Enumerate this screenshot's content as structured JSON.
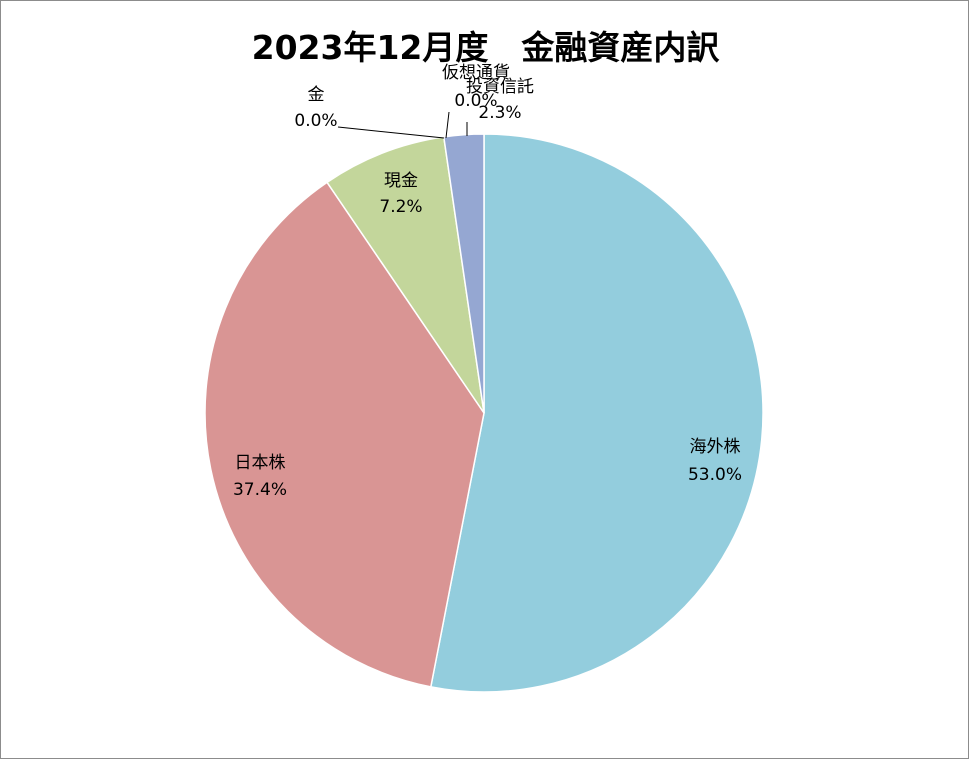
{
  "chart_data": {
    "type": "pie",
    "title": "2023年12月度　金融資産内訳",
    "slices": [
      {
        "label": "海外株",
        "value": 53.0,
        "value_label": "53.0%",
        "color": "#93cddd"
      },
      {
        "label": "日本株",
        "value": 37.4,
        "value_label": "37.4%",
        "color": "#d99594"
      },
      {
        "label": "現金",
        "value": 7.2,
        "value_label": "7.2%",
        "color": "#c3d69b"
      },
      {
        "label": "金",
        "value": 0.0,
        "value_label": "0.0%",
        "color": "#fac090"
      },
      {
        "label": "仮想通貨",
        "value": 0.0,
        "value_label": "0.0%",
        "color": "#b2a1c7"
      },
      {
        "label": "投資信託",
        "value": 2.3,
        "value_label": "2.3%",
        "color": "#95a7d2"
      }
    ],
    "legend": "none"
  }
}
